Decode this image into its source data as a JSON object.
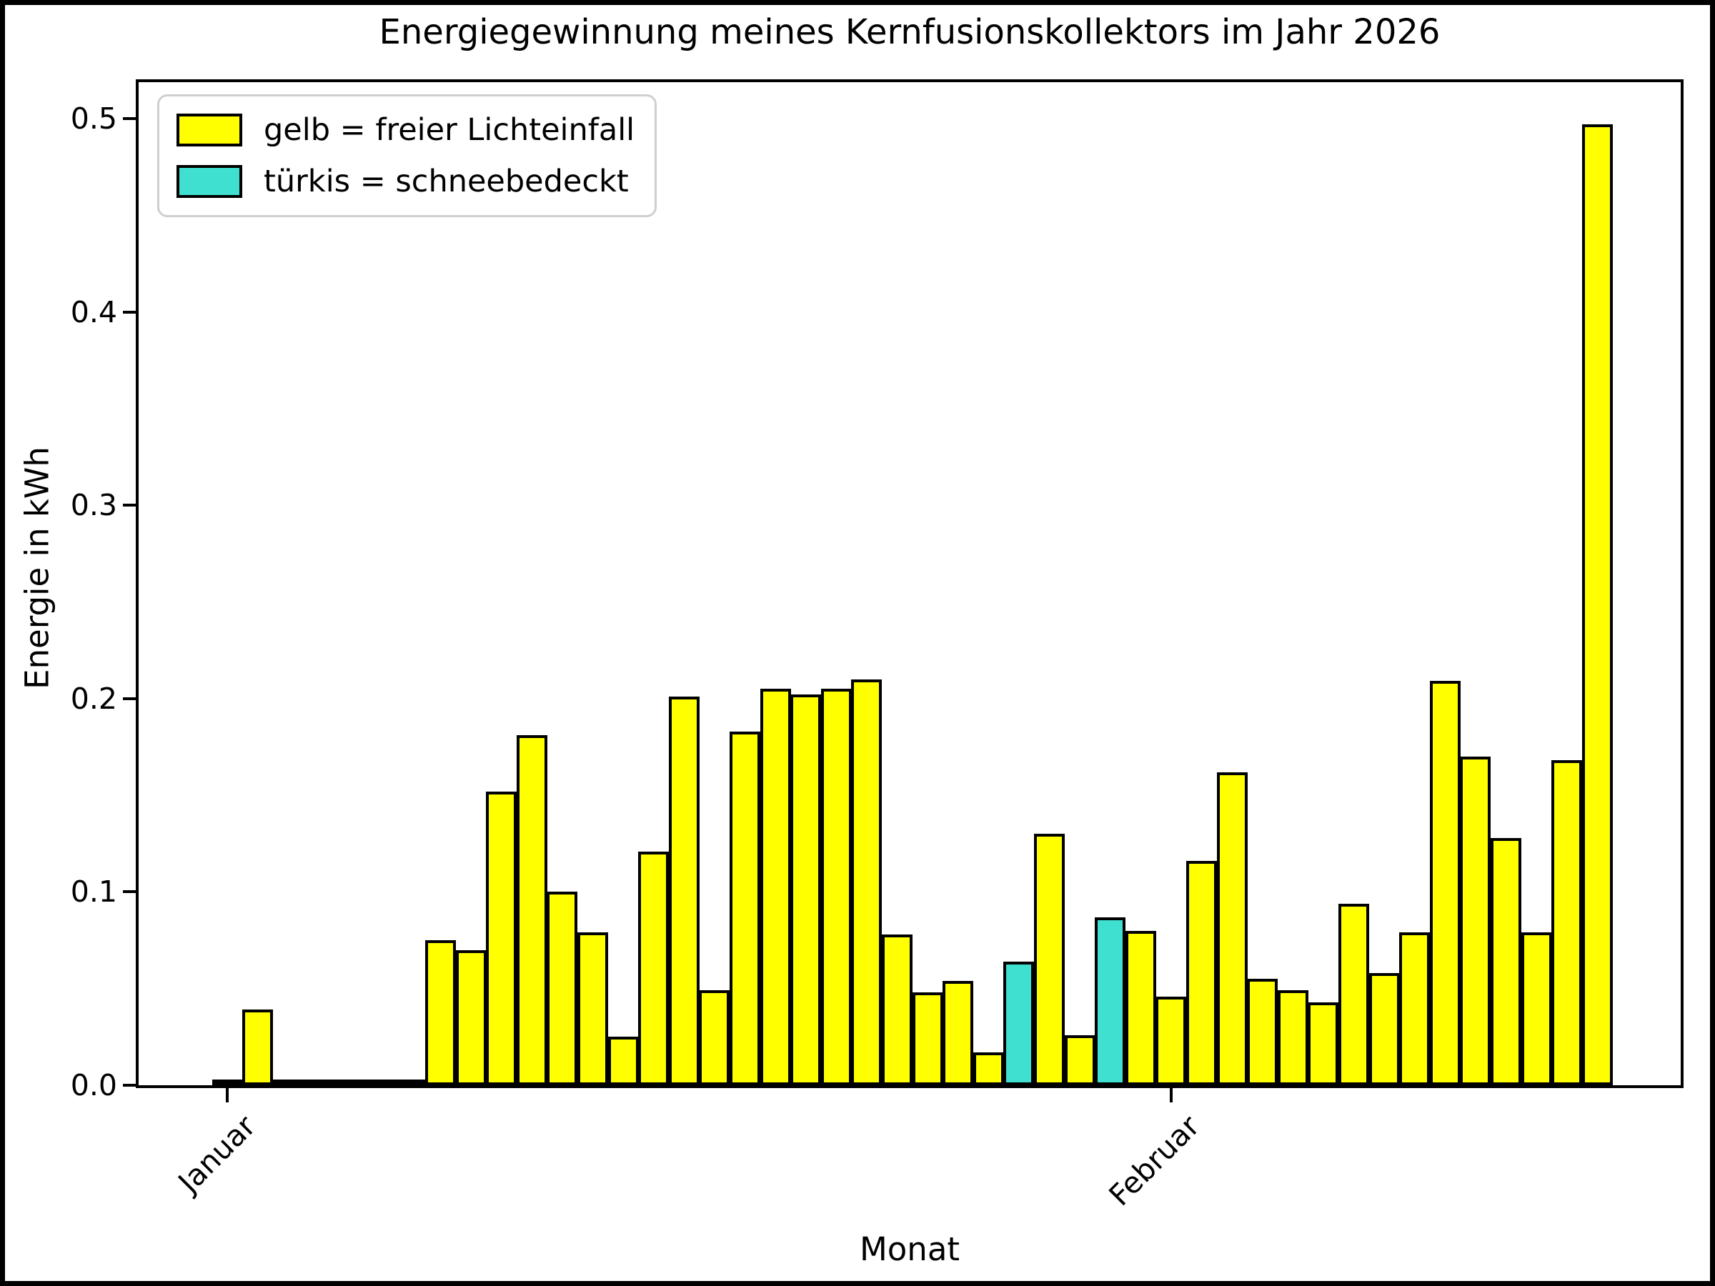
{
  "chart_data": {
    "type": "bar",
    "title": "Energiegewinnung meines Kernfusionskollektors im Jahr 2026",
    "xlabel": "Monat",
    "ylabel": "Energie in kWh",
    "ylim": [
      0,
      0.52
    ],
    "yticks": [
      0.0,
      0.1,
      0.2,
      0.3,
      0.4,
      0.5
    ],
    "xticks": [
      {
        "label": "Januar",
        "day_index": 0
      },
      {
        "label": "Februar",
        "day_index": 31
      }
    ],
    "grid": false,
    "legend": {
      "position": "upper-left",
      "entries": [
        {
          "label": "gelb = freier Lichteinfall",
          "color": "#ffff00"
        },
        {
          "label": "türkis = schneebedeckt",
          "color": "#40e0d0"
        }
      ]
    },
    "bar_edge_color": "#000000",
    "background_color": "#ffffff",
    "series": [
      {
        "month": "Januar",
        "day": 1,
        "value": 0.003,
        "snow_covered": false
      },
      {
        "month": "Januar",
        "day": 2,
        "value": 0.039,
        "snow_covered": false
      },
      {
        "month": "Januar",
        "day": 3,
        "value": 0.001,
        "snow_covered": false
      },
      {
        "month": "Januar",
        "day": 4,
        "value": 0.0005,
        "snow_covered": false
      },
      {
        "month": "Januar",
        "day": 5,
        "value": 0.002,
        "snow_covered": true
      },
      {
        "month": "Januar",
        "day": 6,
        "value": 0.001,
        "snow_covered": false
      },
      {
        "month": "Januar",
        "day": 7,
        "value": 0.003,
        "snow_covered": true
      },
      {
        "month": "Januar",
        "day": 8,
        "value": 0.075,
        "snow_covered": false
      },
      {
        "month": "Januar",
        "day": 9,
        "value": 0.07,
        "snow_covered": false
      },
      {
        "month": "Januar",
        "day": 10,
        "value": 0.152,
        "snow_covered": false
      },
      {
        "month": "Januar",
        "day": 11,
        "value": 0.181,
        "snow_covered": false
      },
      {
        "month": "Januar",
        "day": 12,
        "value": 0.1,
        "snow_covered": false
      },
      {
        "month": "Januar",
        "day": 13,
        "value": 0.079,
        "snow_covered": false
      },
      {
        "month": "Januar",
        "day": 14,
        "value": 0.025,
        "snow_covered": false
      },
      {
        "month": "Januar",
        "day": 15,
        "value": 0.121,
        "snow_covered": false
      },
      {
        "month": "Januar",
        "day": 16,
        "value": 0.201,
        "snow_covered": false
      },
      {
        "month": "Januar",
        "day": 17,
        "value": 0.049,
        "snow_covered": false
      },
      {
        "month": "Januar",
        "day": 18,
        "value": 0.183,
        "snow_covered": false
      },
      {
        "month": "Januar",
        "day": 19,
        "value": 0.205,
        "snow_covered": false
      },
      {
        "month": "Januar",
        "day": 20,
        "value": 0.202,
        "snow_covered": false
      },
      {
        "month": "Januar",
        "day": 21,
        "value": 0.205,
        "snow_covered": false
      },
      {
        "month": "Januar",
        "day": 22,
        "value": 0.21,
        "snow_covered": false
      },
      {
        "month": "Januar",
        "day": 23,
        "value": 0.078,
        "snow_covered": false
      },
      {
        "month": "Januar",
        "day": 24,
        "value": 0.048,
        "snow_covered": false
      },
      {
        "month": "Januar",
        "day": 25,
        "value": 0.054,
        "snow_covered": false
      },
      {
        "month": "Januar",
        "day": 26,
        "value": 0.017,
        "snow_covered": false
      },
      {
        "month": "Januar",
        "day": 27,
        "value": 0.064,
        "snow_covered": true
      },
      {
        "month": "Januar",
        "day": 28,
        "value": 0.13,
        "snow_covered": false
      },
      {
        "month": "Januar",
        "day": 29,
        "value": 0.026,
        "snow_covered": false
      },
      {
        "month": "Januar",
        "day": 30,
        "value": 0.087,
        "snow_covered": true
      },
      {
        "month": "Januar",
        "day": 31,
        "value": 0.08,
        "snow_covered": false
      },
      {
        "month": "Februar",
        "day": 1,
        "value": 0.046,
        "snow_covered": false
      },
      {
        "month": "Februar",
        "day": 2,
        "value": 0.116,
        "snow_covered": false
      },
      {
        "month": "Februar",
        "day": 3,
        "value": 0.162,
        "snow_covered": false
      },
      {
        "month": "Februar",
        "day": 4,
        "value": 0.055,
        "snow_covered": false
      },
      {
        "month": "Februar",
        "day": 5,
        "value": 0.049,
        "snow_covered": false
      },
      {
        "month": "Februar",
        "day": 6,
        "value": 0.043,
        "snow_covered": false
      },
      {
        "month": "Februar",
        "day": 7,
        "value": 0.094,
        "snow_covered": false
      },
      {
        "month": "Februar",
        "day": 8,
        "value": 0.058,
        "snow_covered": false
      },
      {
        "month": "Februar",
        "day": 9,
        "value": 0.079,
        "snow_covered": false
      },
      {
        "month": "Februar",
        "day": 10,
        "value": 0.209,
        "snow_covered": false
      },
      {
        "month": "Februar",
        "day": 11,
        "value": 0.17,
        "snow_covered": false
      },
      {
        "month": "Februar",
        "day": 12,
        "value": 0.128,
        "snow_covered": false
      },
      {
        "month": "Februar",
        "day": 13,
        "value": 0.079,
        "snow_covered": false
      },
      {
        "month": "Februar",
        "day": 14,
        "value": 0.168,
        "snow_covered": false
      },
      {
        "month": "Februar",
        "day": 15,
        "value": 0.497,
        "snow_covered": false
      }
    ]
  }
}
